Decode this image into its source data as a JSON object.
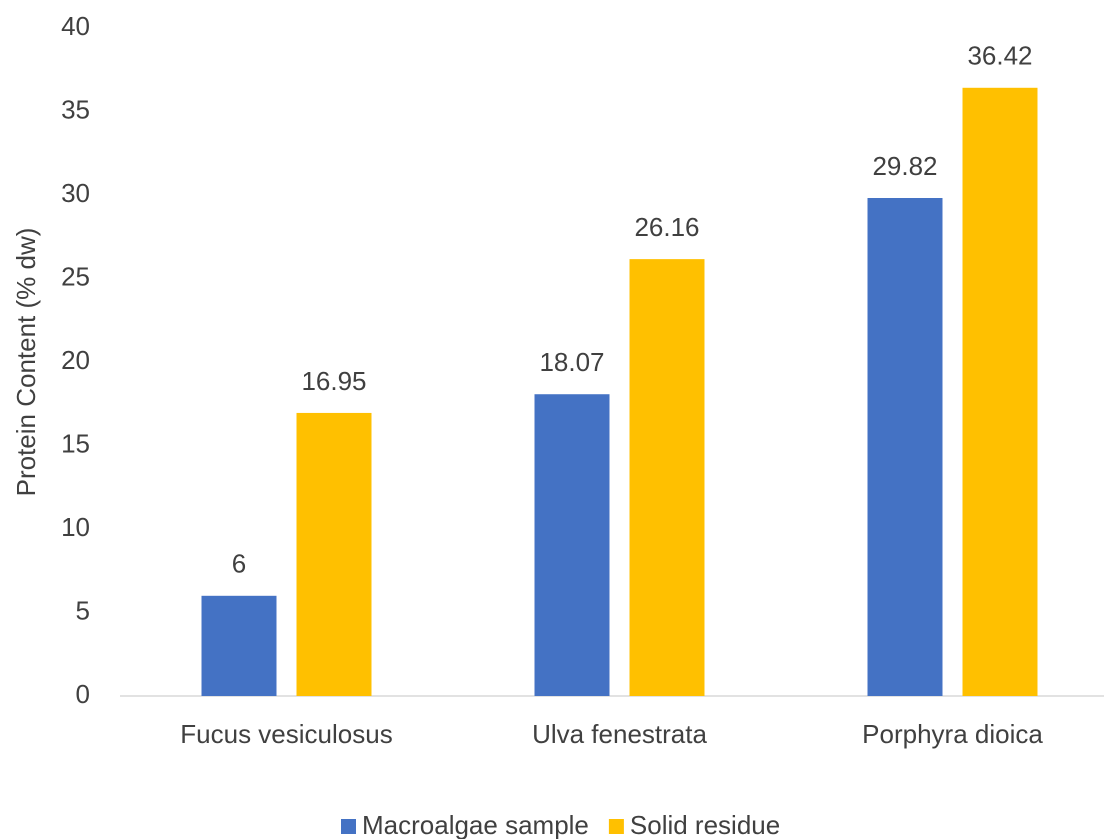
{
  "chart_data": {
    "type": "bar",
    "categories": [
      "Fucus vesiculosus",
      "Ulva fenestrata",
      "Porphyra dioica"
    ],
    "series": [
      {
        "name": "Macroalgae sample",
        "color": "#4472c4",
        "values": [
          6,
          18.07,
          29.82
        ]
      },
      {
        "name": "Solid residue",
        "color": "#ffc000",
        "values": [
          16.95,
          26.16,
          36.42
        ]
      }
    ],
    "y_label": "Protein Content (% dw)",
    "ylim": [
      0,
      40
    ],
    "yticks": [
      0,
      5,
      10,
      15,
      20,
      25,
      30,
      35,
      40
    ],
    "grid": false,
    "legend": "bottom"
  }
}
